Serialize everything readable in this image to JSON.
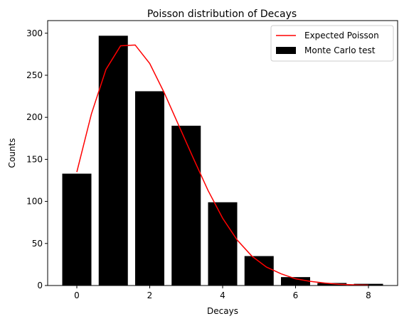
{
  "chart_data": {
    "type": "bar",
    "title": "Poisson distribution of Decays",
    "xlabel": "Decays",
    "ylabel": "Counts",
    "xlim": [
      -0.8,
      8.8
    ],
    "ylim": [
      0,
      315
    ],
    "xticks": [
      0,
      2,
      4,
      6,
      8
    ],
    "yticks": [
      0,
      50,
      100,
      150,
      200,
      250,
      300
    ],
    "grid": false,
    "legend_position": "upper right",
    "bars": {
      "name": "Monte Carlo test",
      "color": "#000000",
      "x": [
        0,
        1,
        2,
        3,
        4,
        5,
        6,
        7,
        8
      ],
      "values": [
        133,
        297,
        231,
        190,
        99,
        35,
        10,
        3,
        2
      ]
    },
    "line": {
      "name": "Expected Poisson",
      "color": "#ff0000",
      "x": [
        0,
        0.4,
        0.8,
        1.2,
        1.6,
        2.0,
        2.4,
        2.8,
        3.2,
        3.6,
        4.0,
        4.4,
        4.8,
        5.2,
        5.6,
        6.0,
        6.4,
        6.8,
        7.2,
        7.6,
        8.0
      ],
      "values": [
        135,
        204,
        257,
        285,
        286,
        264,
        229,
        190,
        151,
        113,
        80,
        54,
        35,
        22,
        14,
        8,
        5,
        3,
        1.5,
        0.8,
        0.4
      ]
    }
  }
}
